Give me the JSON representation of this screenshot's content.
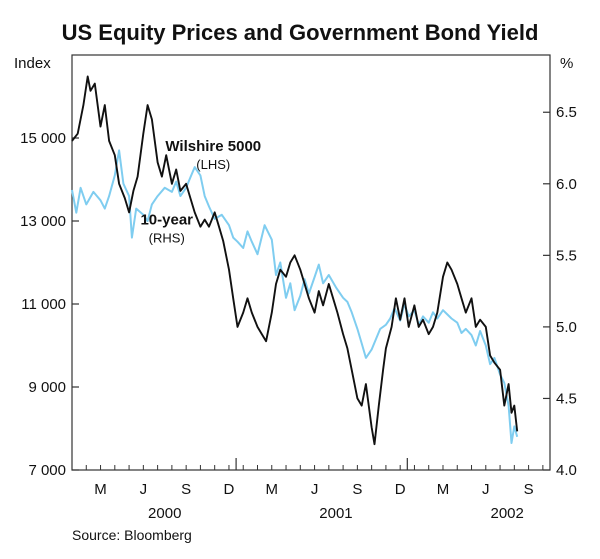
{
  "chart_data": {
    "type": "line",
    "title": "US Equity Prices and Government Bond Yield",
    "source": "Source: Bloomberg",
    "left_axis": {
      "label": "Index",
      "min": 7000,
      "max": 17000,
      "ticks": [
        7000,
        9000,
        11000,
        13000,
        15000
      ],
      "tick_labels": [
        "7 000",
        "9 000",
        "11 000",
        "13 000",
        "15 000"
      ]
    },
    "right_axis": {
      "label": "%",
      "min": 4.0,
      "max": 6.9,
      "ticks": [
        4.0,
        4.5,
        5.0,
        5.5,
        6.0,
        6.5
      ],
      "tick_labels": [
        "4.0",
        "4.5",
        "5.0",
        "5.5",
        "6.0",
        "6.5"
      ]
    },
    "x_axis": {
      "months": [
        "M",
        "J",
        "S",
        "D",
        "M",
        "J",
        "S",
        "D",
        "M",
        "J",
        "S"
      ],
      "month_positions": [
        2,
        5,
        8,
        11,
        14,
        17,
        20,
        23,
        26,
        29,
        32
      ],
      "years": [
        "2000",
        "2001",
        "2002"
      ],
      "year_positions": [
        6.5,
        18.5,
        30.5
      ],
      "range": [
        0,
        33.5
      ]
    },
    "series": [
      {
        "name": "Wilshire 5000",
        "name_line2": "(LHS)",
        "axis": "left",
        "color": "#7fcdf0",
        "label_anchor_t": 9.2,
        "points": [
          [
            0,
            13750
          ],
          [
            0.3,
            13200
          ],
          [
            0.6,
            13800
          ],
          [
            1,
            13400
          ],
          [
            1.5,
            13700
          ],
          [
            2,
            13500
          ],
          [
            2.3,
            13300
          ],
          [
            2.6,
            13600
          ],
          [
            3,
            14100
          ],
          [
            3.3,
            14700
          ],
          [
            3.6,
            13900
          ],
          [
            4,
            13600
          ],
          [
            4.2,
            12600
          ],
          [
            4.5,
            13300
          ],
          [
            5,
            13150
          ],
          [
            5.3,
            13000
          ],
          [
            5.6,
            13400
          ],
          [
            6,
            13600
          ],
          [
            6.5,
            13800
          ],
          [
            7,
            13700
          ],
          [
            7.3,
            13950
          ],
          [
            7.6,
            13600
          ],
          [
            8,
            13800
          ],
          [
            8.3,
            14050
          ],
          [
            8.6,
            14300
          ],
          [
            9,
            14100
          ],
          [
            9.3,
            13600
          ],
          [
            9.6,
            13350
          ],
          [
            10,
            13050
          ],
          [
            10.5,
            13150
          ],
          [
            11,
            12900
          ],
          [
            11.3,
            12600
          ],
          [
            11.6,
            12500
          ],
          [
            12,
            12350
          ],
          [
            12.3,
            12750
          ],
          [
            12.6,
            12500
          ],
          [
            13,
            12200
          ],
          [
            13.5,
            12900
          ],
          [
            14,
            12550
          ],
          [
            14.3,
            11700
          ],
          [
            14.6,
            12000
          ],
          [
            15,
            11150
          ],
          [
            15.3,
            11500
          ],
          [
            15.6,
            10850
          ],
          [
            16,
            11200
          ],
          [
            16.3,
            11600
          ],
          [
            16.6,
            11250
          ],
          [
            17,
            11650
          ],
          [
            17.3,
            11950
          ],
          [
            17.6,
            11500
          ],
          [
            18,
            11700
          ],
          [
            18.5,
            11400
          ],
          [
            19,
            11150
          ],
          [
            19.3,
            11050
          ],
          [
            19.6,
            10800
          ],
          [
            20,
            10400
          ],
          [
            20.3,
            10050
          ],
          [
            20.6,
            9700
          ],
          [
            21,
            9900
          ],
          [
            21.3,
            10150
          ],
          [
            21.6,
            10400
          ],
          [
            22,
            10500
          ],
          [
            22.3,
            10650
          ],
          [
            22.6,
            10900
          ],
          [
            23,
            10600
          ],
          [
            23.3,
            11000
          ],
          [
            23.6,
            10700
          ],
          [
            24,
            10850
          ],
          [
            24.3,
            10500
          ],
          [
            24.6,
            10700
          ],
          [
            25,
            10550
          ],
          [
            25.3,
            10800
          ],
          [
            25.6,
            10650
          ],
          [
            26,
            10850
          ],
          [
            26.3,
            10750
          ],
          [
            26.6,
            10650
          ],
          [
            27,
            10550
          ],
          [
            27.3,
            10300
          ],
          [
            27.6,
            10400
          ],
          [
            28,
            10250
          ],
          [
            28.3,
            10000
          ],
          [
            28.6,
            10350
          ],
          [
            29,
            10000
          ],
          [
            29.3,
            9550
          ],
          [
            29.6,
            9700
          ],
          [
            30,
            9300
          ],
          [
            30.3,
            9100
          ],
          [
            30.6,
            8550
          ],
          [
            30.8,
            7650
          ],
          [
            31,
            8050
          ],
          [
            31.2,
            7800
          ]
        ]
      },
      {
        "name": "10-year",
        "name_line2": "(RHS)",
        "axis": "right",
        "color": "#111111",
        "label_anchor_t": 7.2,
        "points": [
          [
            0,
            6.3
          ],
          [
            0.4,
            6.35
          ],
          [
            0.8,
            6.55
          ],
          [
            1.1,
            6.75
          ],
          [
            1.3,
            6.65
          ],
          [
            1.6,
            6.7
          ],
          [
            2,
            6.4
          ],
          [
            2.3,
            6.55
          ],
          [
            2.6,
            6.3
          ],
          [
            3,
            6.2
          ],
          [
            3.3,
            6.0
          ],
          [
            3.7,
            5.9
          ],
          [
            4,
            5.8
          ],
          [
            4.3,
            5.95
          ],
          [
            4.6,
            6.05
          ],
          [
            5,
            6.35
          ],
          [
            5.3,
            6.55
          ],
          [
            5.6,
            6.45
          ],
          [
            6,
            6.15
          ],
          [
            6.3,
            6.05
          ],
          [
            6.6,
            6.2
          ],
          [
            7,
            6.0
          ],
          [
            7.3,
            6.1
          ],
          [
            7.6,
            5.95
          ],
          [
            8,
            6.0
          ],
          [
            8.3,
            5.9
          ],
          [
            8.6,
            5.8
          ],
          [
            9,
            5.7
          ],
          [
            9.3,
            5.75
          ],
          [
            9.6,
            5.7
          ],
          [
            10,
            5.8
          ],
          [
            10.3,
            5.7
          ],
          [
            10.6,
            5.6
          ],
          [
            11,
            5.4
          ],
          [
            11.3,
            5.2
          ],
          [
            11.6,
            5.0
          ],
          [
            12,
            5.1
          ],
          [
            12.3,
            5.2
          ],
          [
            12.6,
            5.1
          ],
          [
            13,
            5.0
          ],
          [
            13.3,
            4.95
          ],
          [
            13.6,
            4.9
          ],
          [
            14,
            5.1
          ],
          [
            14.3,
            5.3
          ],
          [
            14.6,
            5.4
          ],
          [
            15,
            5.35
          ],
          [
            15.3,
            5.45
          ],
          [
            15.6,
            5.5
          ],
          [
            16,
            5.4
          ],
          [
            16.3,
            5.3
          ],
          [
            16.6,
            5.2
          ],
          [
            17,
            5.1
          ],
          [
            17.3,
            5.25
          ],
          [
            17.6,
            5.15
          ],
          [
            18,
            5.3
          ],
          [
            18.3,
            5.2
          ],
          [
            18.6,
            5.1
          ],
          [
            19,
            4.95
          ],
          [
            19.3,
            4.85
          ],
          [
            19.6,
            4.7
          ],
          [
            20,
            4.5
          ],
          [
            20.3,
            4.45
          ],
          [
            20.6,
            4.6
          ],
          [
            21,
            4.3
          ],
          [
            21.2,
            4.18
          ],
          [
            21.5,
            4.45
          ],
          [
            21.8,
            4.7
          ],
          [
            22,
            4.85
          ],
          [
            22.4,
            5.0
          ],
          [
            22.7,
            5.2
          ],
          [
            23,
            5.05
          ],
          [
            23.3,
            5.2
          ],
          [
            23.6,
            5.0
          ],
          [
            24,
            5.15
          ],
          [
            24.3,
            5.0
          ],
          [
            24.6,
            5.05
          ],
          [
            25,
            4.95
          ],
          [
            25.3,
            5.0
          ],
          [
            25.6,
            5.1
          ],
          [
            26,
            5.35
          ],
          [
            26.3,
            5.45
          ],
          [
            26.6,
            5.4
          ],
          [
            27,
            5.3
          ],
          [
            27.3,
            5.2
          ],
          [
            27.6,
            5.1
          ],
          [
            28,
            5.2
          ],
          [
            28.3,
            5.0
          ],
          [
            28.6,
            5.05
          ],
          [
            29,
            5.0
          ],
          [
            29.3,
            4.8
          ],
          [
            29.6,
            4.75
          ],
          [
            30,
            4.7
          ],
          [
            30.3,
            4.45
          ],
          [
            30.6,
            4.6
          ],
          [
            30.8,
            4.4
          ],
          [
            31,
            4.45
          ],
          [
            31.2,
            4.27
          ]
        ]
      }
    ]
  }
}
